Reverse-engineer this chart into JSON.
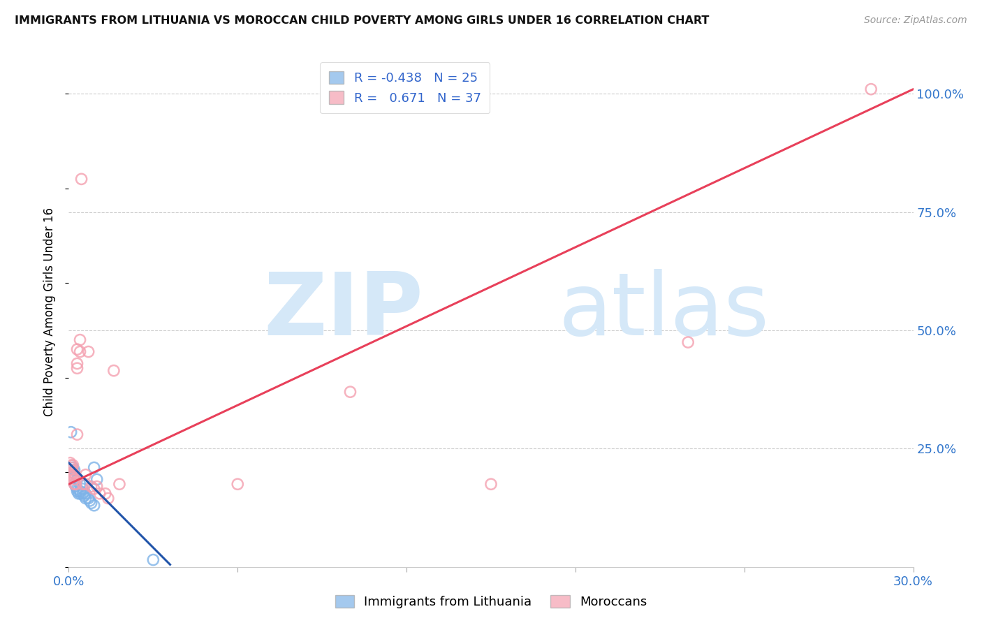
{
  "title": "IMMIGRANTS FROM LITHUANIA VS MOROCCAN CHILD POVERTY AMONG GIRLS UNDER 16 CORRELATION CHART",
  "source": "Source: ZipAtlas.com",
  "ylabel": "Child Poverty Among Girls Under 16",
  "ytick_labels": [
    "100.0%",
    "75.0%",
    "50.0%",
    "25.0%"
  ],
  "ytick_values": [
    1.0,
    0.75,
    0.5,
    0.25
  ],
  "xlim": [
    0.0,
    0.3
  ],
  "ylim": [
    0.0,
    1.08
  ],
  "legend_R1": "-0.438",
  "legend_N1": "25",
  "legend_R2": "0.671",
  "legend_N2": "37",
  "blue_color": "#7EB3E8",
  "pink_color": "#F4A0B0",
  "blue_line_color": "#2255AA",
  "pink_line_color": "#E8405A",
  "watermark_zip": "ZIP",
  "watermark_atlas": "atlas",
  "watermark_color": "#D5E8F8",
  "blue_dots": [
    [
      0.0008,
      0.285
    ],
    [
      0.0015,
      0.21
    ],
    [
      0.0018,
      0.19
    ],
    [
      0.002,
      0.205
    ],
    [
      0.0022,
      0.175
    ],
    [
      0.0025,
      0.17
    ],
    [
      0.003,
      0.185
    ],
    [
      0.003,
      0.165
    ],
    [
      0.003,
      0.16
    ],
    [
      0.0035,
      0.155
    ],
    [
      0.004,
      0.175
    ],
    [
      0.004,
      0.16
    ],
    [
      0.0042,
      0.155
    ],
    [
      0.005,
      0.165
    ],
    [
      0.005,
      0.155
    ],
    [
      0.0055,
      0.15
    ],
    [
      0.006,
      0.155
    ],
    [
      0.006,
      0.145
    ],
    [
      0.007,
      0.145
    ],
    [
      0.0075,
      0.14
    ],
    [
      0.008,
      0.135
    ],
    [
      0.009,
      0.13
    ],
    [
      0.009,
      0.21
    ],
    [
      0.01,
      0.185
    ],
    [
      0.03,
      0.015
    ]
  ],
  "pink_dots": [
    [
      0.0005,
      0.22
    ],
    [
      0.0008,
      0.215
    ],
    [
      0.001,
      0.21
    ],
    [
      0.001,
      0.205
    ],
    [
      0.001,
      0.2
    ],
    [
      0.001,
      0.195
    ],
    [
      0.0012,
      0.19
    ],
    [
      0.0015,
      0.215
    ],
    [
      0.0015,
      0.2
    ],
    [
      0.002,
      0.195
    ],
    [
      0.002,
      0.185
    ],
    [
      0.002,
      0.175
    ],
    [
      0.0025,
      0.175
    ],
    [
      0.003,
      0.46
    ],
    [
      0.003,
      0.43
    ],
    [
      0.003,
      0.42
    ],
    [
      0.003,
      0.28
    ],
    [
      0.004,
      0.455
    ],
    [
      0.004,
      0.48
    ],
    [
      0.0045,
      0.82
    ],
    [
      0.005,
      0.175
    ],
    [
      0.006,
      0.195
    ],
    [
      0.006,
      0.175
    ],
    [
      0.007,
      0.455
    ],
    [
      0.008,
      0.17
    ],
    [
      0.009,
      0.165
    ],
    [
      0.01,
      0.17
    ],
    [
      0.011,
      0.155
    ],
    [
      0.013,
      0.155
    ],
    [
      0.014,
      0.145
    ],
    [
      0.016,
      0.415
    ],
    [
      0.018,
      0.175
    ],
    [
      0.06,
      0.175
    ],
    [
      0.1,
      0.37
    ],
    [
      0.15,
      0.175
    ],
    [
      0.22,
      0.475
    ],
    [
      0.285,
      1.01
    ]
  ],
  "blue_trendline": [
    [
      0.0,
      0.22
    ],
    [
      0.036,
      0.005
    ]
  ],
  "pink_trendline": [
    [
      0.0,
      0.175
    ],
    [
      0.3,
      1.01
    ]
  ]
}
